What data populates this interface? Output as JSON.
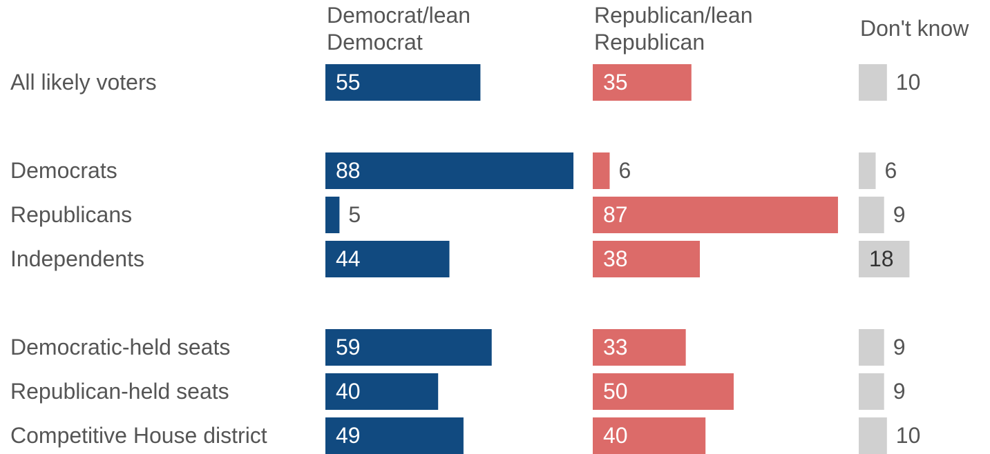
{
  "chart_data": {
    "type": "bar",
    "series": [
      {
        "name": "Democrat/lean Democrat",
        "header_lines": [
          "Democrat/lean",
          "Democrat"
        ],
        "color": "#114a80",
        "values": [
          55,
          88,
          5,
          44,
          59,
          40,
          49
        ]
      },
      {
        "name": "Republican/lean Republican",
        "header_lines": [
          "Republican/lean",
          "Republican"
        ],
        "color": "#dc6b69",
        "values": [
          35,
          6,
          87,
          38,
          33,
          50,
          40
        ]
      },
      {
        "name": "Don't know",
        "header_lines": [
          "Don't know"
        ],
        "color": "#d0d0d0",
        "values": [
          10,
          6,
          9,
          18,
          9,
          9,
          10
        ]
      }
    ],
    "categories": [
      "All likely voters",
      "Democrats",
      "Republicans",
      "Independents",
      "Democratic-held seats",
      "Republican-held seats",
      "Competitive House district"
    ],
    "groups": [
      [
        0
      ],
      [
        1,
        2,
        3
      ],
      [
        4,
        5,
        6
      ]
    ],
    "legend": "top",
    "grid": false,
    "xlim": [
      0,
      100
    ]
  }
}
